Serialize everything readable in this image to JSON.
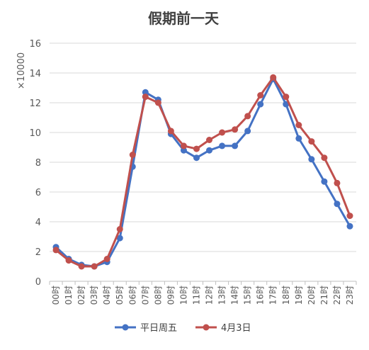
{
  "chart_data": {
    "type": "line",
    "title": "假期前一天",
    "ylabel": "×10000",
    "xlabel": "",
    "ylim": [
      0,
      16
    ],
    "yticks": [
      0,
      2,
      4,
      6,
      8,
      10,
      12,
      14,
      16
    ],
    "grid": true,
    "legend": "bottom",
    "categories": [
      "00时",
      "01时",
      "02时",
      "03时",
      "04时",
      "05时",
      "06时",
      "07时",
      "08时",
      "09时",
      "10时",
      "11时",
      "12时",
      "13时",
      "14时",
      "15时",
      "16时",
      "17时",
      "18时",
      "19时",
      "20时",
      "21时",
      "22时",
      "23时"
    ],
    "series": [
      {
        "name": "平日周五",
        "color": "#4472c4",
        "values": [
          2.3,
          1.5,
          1.1,
          1.0,
          1.3,
          2.9,
          7.7,
          12.7,
          12.2,
          9.9,
          8.8,
          8.3,
          8.8,
          9.1,
          9.1,
          10.1,
          11.9,
          13.6,
          11.9,
          9.6,
          8.2,
          6.7,
          5.2,
          3.7
        ]
      },
      {
        "name": "4月3日",
        "color": "#c0504d",
        "values": [
          2.1,
          1.4,
          1.0,
          1.0,
          1.5,
          3.5,
          8.5,
          12.4,
          12.0,
          10.1,
          9.1,
          8.9,
          9.5,
          10.0,
          10.2,
          11.1,
          12.5,
          13.7,
          12.4,
          10.5,
          9.4,
          8.3,
          6.6,
          4.4
        ]
      }
    ]
  }
}
